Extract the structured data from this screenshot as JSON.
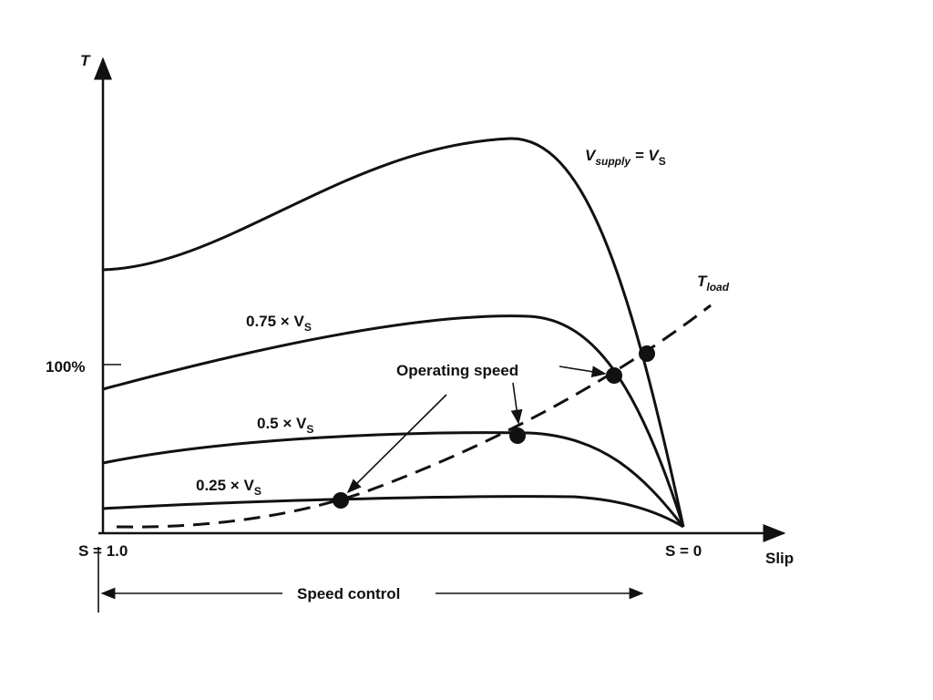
{
  "axes": {
    "y_label": "T",
    "y_tick_label": "100%",
    "x_label": "Slip",
    "x_start_label": "S = 1.0",
    "x_end_label": "S = 0"
  },
  "curves": [
    {
      "prefix": "V",
      "prefix_sub": "supply",
      "middle": " = V",
      "subscript": "S"
    },
    {
      "prefix": "0.75 × V",
      "subscript": "S"
    },
    {
      "prefix": "0.5 × V",
      "subscript": "S"
    },
    {
      "prefix": "0.25 × V",
      "subscript": "S"
    }
  ],
  "load_curve": {
    "main": "T",
    "subscript": "load"
  },
  "annotation": "Operating speed",
  "range_label": "Speed control"
}
